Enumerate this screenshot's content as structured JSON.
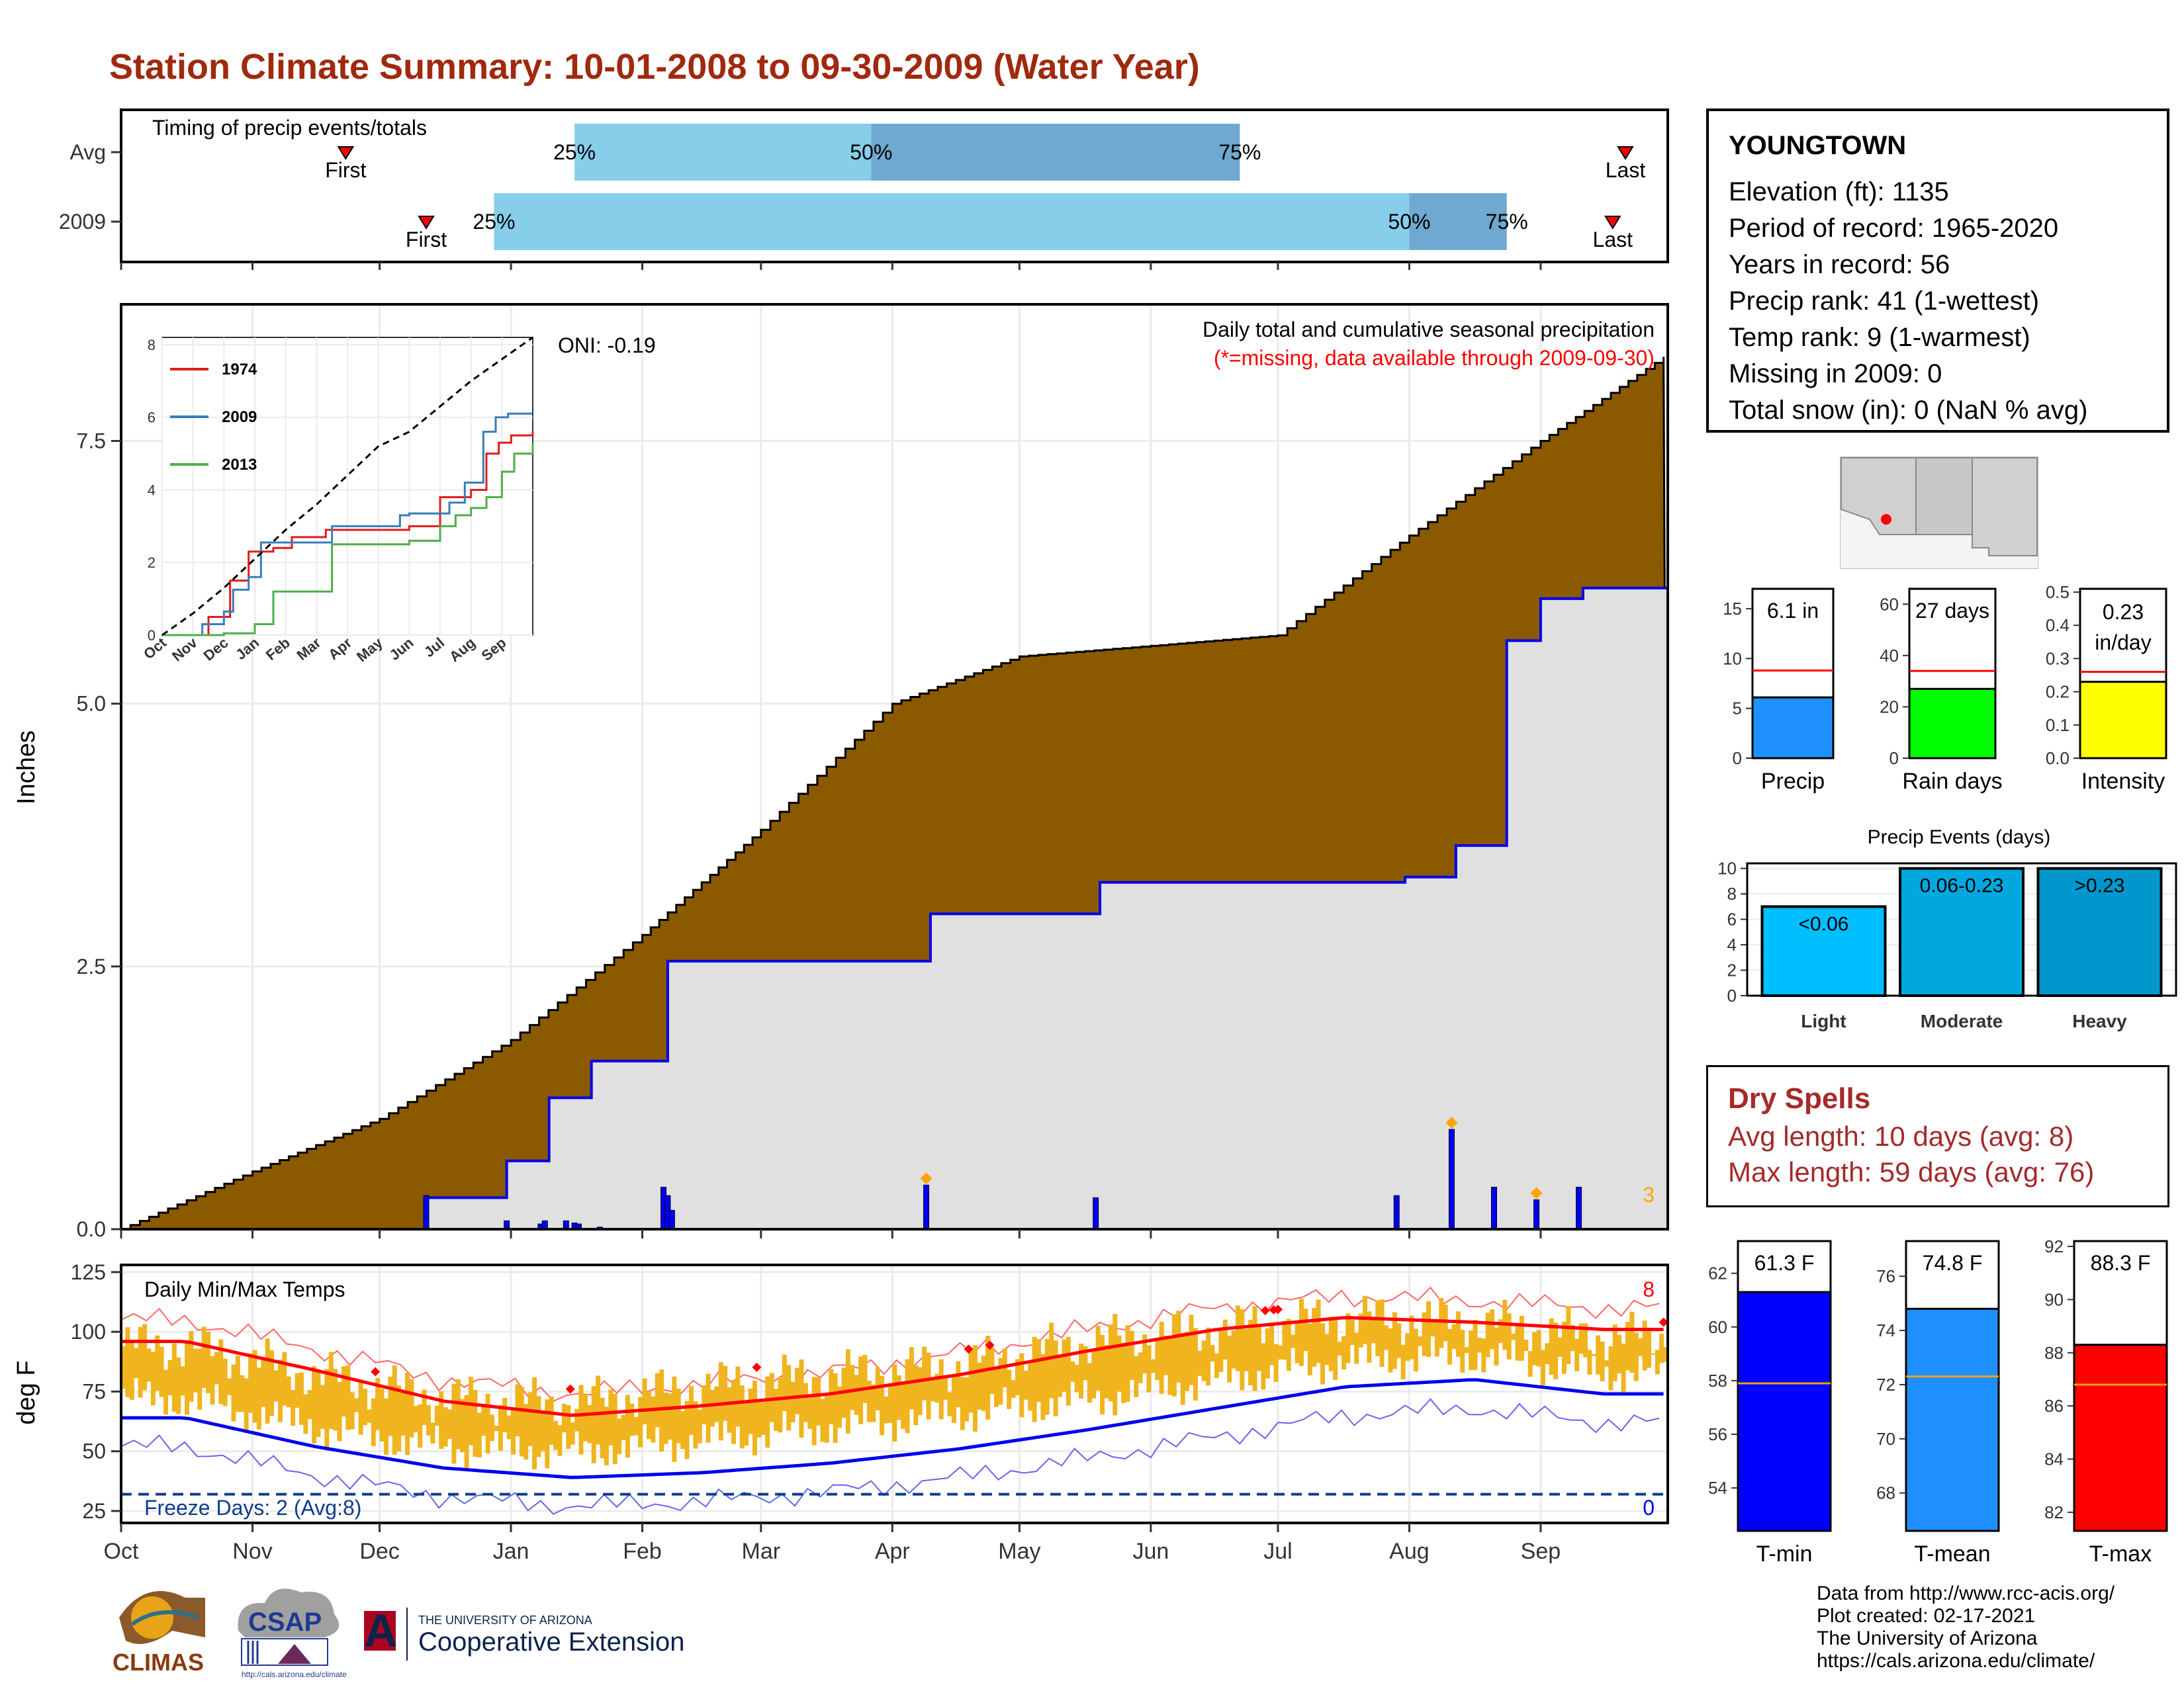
{
  "title": "Station Climate Summary: 10-01-2008 to 09-30-2009 (Water Year)",
  "station": {
    "name": "YOUNGTOWN",
    "lines": [
      "Elevation (ft): 1135",
      "Period of record: 1965-2020",
      "Years in record: 56",
      "Precip rank: 41 (1-wettest)",
      "Temp rank: 9 (1-warmest)",
      "Missing in 2009: 0",
      "Total snow (in): 0 (NaN % avg)"
    ]
  },
  "colors": {
    "title": "#a0290e",
    "cumulative_2009": "#8b5a00",
    "cumulative_avg_fill": "#e0e0e0",
    "daily_bars": "#0000ee",
    "temp_range": "#f0b41e",
    "tmax_line": "#ff0000",
    "tmin_line": "#0000ee",
    "timing_q1": "#87ceeb",
    "timing_q2": "#6fa8d0",
    "precip_bar": "#1e90ff",
    "raindays_bar": "#00ff00",
    "intensity_bar": "#ffff00",
    "events_light": "#00bfff",
    "events_moderate": "#00a8e0",
    "events_heavy": "#0098cc",
    "tmin_bar": "#0000ff",
    "tmean_bar": "#1e90ff",
    "tmax_bar": "#ff0000",
    "dry_spells": "#a52a2a"
  },
  "chart_data": [
    {
      "type": "bar",
      "title": "Timing of precip events/totals",
      "categories": [
        "Avg",
        "2009"
      ],
      "rows": [
        {
          "label": "Avg",
          "first": "Nov 23",
          "q25": "Jan 16",
          "q50": "Mar 27",
          "q75": "Jun 22",
          "last": "Sep 21"
        },
        {
          "label": "2009",
          "first": "Dec 12",
          "q25": "Dec 28",
          "q50": "Aug 1",
          "q75": "Aug 24",
          "last": "Sep 18"
        }
      ],
      "labels": {
        "first": "First",
        "last": "Last",
        "q25": "25%",
        "q50": "50%",
        "q75": "75%"
      }
    },
    {
      "type": "area",
      "title": "Daily total and cumulative seasonal precipitation",
      "subtitle": "(*=missing, data available through 2009-09-30)",
      "ylabel": "Inches",
      "ylim": [
        0,
        8.8
      ],
      "yticks": [
        0.0,
        2.5,
        5.0,
        7.5
      ],
      "xticks": [
        "Oct",
        "Nov",
        "Dec",
        "Jan",
        "Feb",
        "Mar",
        "Apr",
        "May",
        "Jun",
        "Jul",
        "Aug",
        "Sep"
      ],
      "oni": "ONI: -0.19",
      "count_label": "3",
      "series": [
        {
          "name": "Average cumulative",
          "x": [
            "2008-10-01",
            "2008-11-01",
            "2008-12-01",
            "2009-01-01",
            "2009-02-01",
            "2009-03-01",
            "2009-04-01",
            "2009-05-01",
            "2009-06-01",
            "2009-07-01",
            "2009-08-01",
            "2009-09-01",
            "2009-09-30"
          ],
          "values": [
            0.0,
            0.55,
            1.05,
            1.8,
            2.8,
            3.8,
            5.0,
            5.45,
            5.55,
            5.65,
            6.6,
            7.5,
            8.3
          ]
        },
        {
          "name": "2009 cumulative",
          "x": [
            "2008-10-01",
            "2008-12-12",
            "2008-12-31",
            "2009-01-01",
            "2009-01-10",
            "2009-01-20",
            "2009-02-07",
            "2009-02-28",
            "2009-04-10",
            "2009-05-20",
            "2009-07-31",
            "2009-08-12",
            "2009-08-24",
            "2009-09-01",
            "2009-09-11",
            "2009-09-30"
          ],
          "values": [
            0.0,
            0.3,
            0.65,
            0.65,
            1.25,
            1.6,
            2.55,
            2.55,
            3.0,
            3.3,
            3.35,
            3.65,
            5.6,
            6.0,
            6.1,
            6.1
          ]
        },
        {
          "name": "Daily precip",
          "x": [
            "2008-12-12",
            "2008-12-31",
            "2009-01-08",
            "2009-01-09",
            "2009-01-14",
            "2009-01-16",
            "2009-01-17",
            "2009-01-22",
            "2009-02-06",
            "2009-02-07",
            "2009-02-08",
            "2009-04-09",
            "2009-05-19",
            "2009-07-29",
            "2009-08-11",
            "2009-08-21",
            "2009-08-31",
            "2009-09-10"
          ],
          "values": [
            0.32,
            0.08,
            0.05,
            0.08,
            0.08,
            0.06,
            0.05,
            0.02,
            0.4,
            0.32,
            0.18,
            0.42,
            0.3,
            0.32,
            0.95,
            0.4,
            0.28,
            0.4
          ]
        }
      ]
    },
    {
      "type": "line",
      "title": "",
      "xticks": [
        "Oct",
        "Nov",
        "Dec",
        "Jan",
        "Feb",
        "Mar",
        "Apr",
        "May",
        "Jun",
        "Jul",
        "Aug",
        "Sep"
      ],
      "yticks": [
        0,
        2,
        4,
        6,
        8
      ],
      "ylim": [
        0,
        8.2
      ],
      "series": [
        {
          "name": "1974",
          "color": "#e41a1c",
          "x": [
            0,
            1.5,
            2.2,
            2.8,
            3.6,
            4.2,
            5.3,
            8.0,
            9.0,
            10.0,
            10.5,
            10.9,
            11.3,
            12
          ],
          "values": [
            0,
            0.5,
            1.5,
            2.3,
            2.4,
            2.7,
            2.9,
            3.0,
            3.8,
            4.0,
            5.0,
            5.3,
            5.5,
            5.6
          ]
        },
        {
          "name": "2009",
          "color": "#377eb8",
          "x": [
            0,
            1.3,
            2.0,
            2.3,
            2.8,
            3.2,
            4.0,
            5.5,
            7.7,
            8.0,
            9.3,
            9.8,
            10.4,
            10.8,
            11.2,
            11.6,
            12
          ],
          "values": [
            0,
            0.3,
            0.65,
            1.25,
            1.6,
            2.55,
            2.55,
            3.0,
            3.3,
            3.35,
            3.65,
            4.2,
            5.6,
            6.0,
            6.1,
            6.1,
            6.1
          ]
        },
        {
          "name": "2013",
          "color": "#4daf4a",
          "x": [
            0,
            2.0,
            3.0,
            3.6,
            5.5,
            8.0,
            9.0,
            9.5,
            10.0,
            10.5,
            11.0,
            11.4,
            12
          ],
          "values": [
            0,
            0.05,
            0.3,
            1.2,
            2.5,
            2.6,
            3.0,
            3.3,
            3.5,
            3.8,
            4.5,
            5.0,
            5.3
          ]
        },
        {
          "name": "max",
          "color": "#000000",
          "x": [
            0,
            1,
            2,
            3,
            4,
            5,
            6,
            7,
            8,
            9,
            10,
            11,
            12
          ],
          "values": [
            0,
            0.6,
            1.3,
            2.1,
            2.9,
            3.6,
            4.4,
            5.2,
            5.6,
            6.3,
            7.0,
            7.6,
            8.2
          ]
        }
      ]
    },
    {
      "type": "line",
      "title": "Daily Min/Max Temps",
      "ylabel": "deg F",
      "ylim": [
        20,
        128
      ],
      "yticks": [
        25,
        50,
        75,
        100,
        125
      ],
      "xticks": [
        "Oct",
        "Nov",
        "Dec",
        "Jan",
        "Feb",
        "Mar",
        "Apr",
        "May",
        "Jun",
        "Jul",
        "Aug",
        "Sep"
      ],
      "freeze_label": "Freeze Days: 2 (Avg:8)",
      "freeze_line": 32,
      "count_high": "8",
      "count_low": "0",
      "series": [
        {
          "name": "Normal Tmax",
          "x": [
            "Oct",
            "Nov",
            "Dec",
            "Jan",
            "Feb",
            "Mar",
            "Apr",
            "May",
            "Jun",
            "Jul",
            "Aug",
            "Sep"
          ],
          "values": [
            96,
            84,
            71,
            65,
            69,
            74,
            82,
            92,
            101,
            106,
            104,
            101
          ]
        },
        {
          "name": "Normal Tmin",
          "x": [
            "Oct",
            "Nov",
            "Dec",
            "Jan",
            "Feb",
            "Mar",
            "Apr",
            "May",
            "Jun",
            "Jul",
            "Aug",
            "Sep"
          ],
          "values": [
            64,
            52,
            43,
            39,
            41,
            45,
            51,
            59,
            68,
            77,
            80,
            74
          ]
        },
        {
          "name": "Daily Tmax 2009",
          "x": [
            "Oct",
            "Nov",
            "Dec",
            "Jan",
            "Feb",
            "Mar",
            "Apr",
            "May",
            "Jun",
            "Jul",
            "Aug",
            "Sep"
          ],
          "values": [
            94,
            82,
            72,
            70,
            77,
            82,
            86,
            96,
            101,
            106,
            104,
            98
          ]
        },
        {
          "name": "Daily Tmin 2009",
          "x": [
            "Oct",
            "Nov",
            "Dec",
            "Jan",
            "Feb",
            "Mar",
            "Apr",
            "May",
            "Jun",
            "Jul",
            "Aug",
            "Sep"
          ],
          "values": [
            64,
            52,
            44,
            42,
            47,
            52,
            58,
            64,
            72,
            80,
            82,
            75
          ]
        }
      ]
    },
    {
      "type": "bar",
      "title": "Precip",
      "categories": [
        "Precip"
      ],
      "values": [
        6.1
      ],
      "avg": 8.8,
      "label": "6.1 in",
      "ylim": [
        0,
        17
      ],
      "yticks": [
        0,
        5,
        10,
        15
      ]
    },
    {
      "type": "bar",
      "title": "Rain days",
      "categories": [
        "Rain days"
      ],
      "values": [
        27
      ],
      "avg": 34,
      "label": "27 days",
      "ylim": [
        0,
        66
      ],
      "yticks": [
        0,
        20,
        40,
        60
      ]
    },
    {
      "type": "bar",
      "title": "Intensity",
      "categories": [
        "Intensity"
      ],
      "values": [
        0.23
      ],
      "avg": 0.26,
      "label": "0.23",
      "label2": "in/day",
      "ylim": [
        0,
        0.51
      ],
      "yticks": [
        0.0,
        0.1,
        0.2,
        0.3,
        0.4,
        0.5
      ]
    },
    {
      "type": "bar",
      "title": "Precip Events (days)",
      "categories": [
        "Light",
        "Moderate",
        "Heavy"
      ],
      "values": [
        7,
        10,
        10
      ],
      "bar_labels": [
        "<0.06",
        "0.06-0.23",
        ">0.23"
      ],
      "ylim": [
        0,
        10.4
      ],
      "yticks": [
        0,
        2,
        4,
        6,
        8,
        10
      ]
    },
    {
      "type": "bar",
      "title": "T-min",
      "categories": [
        "T-min"
      ],
      "values": [
        61.3
      ],
      "avg": 57.9,
      "label": "61.3 F",
      "ylim": [
        52.4,
        63.2
      ],
      "yticks": [
        54,
        56,
        58,
        60,
        62
      ]
    },
    {
      "type": "bar",
      "title": "T-mean",
      "categories": [
        "T-mean"
      ],
      "values": [
        74.8
      ],
      "avg": 72.3,
      "label": "74.8 F",
      "ylim": [
        66.6,
        77.3
      ],
      "yticks": [
        68,
        70,
        72,
        74,
        76
      ]
    },
    {
      "type": "bar",
      "title": "T-max",
      "categories": [
        "T-max"
      ],
      "values": [
        88.3
      ],
      "avg": 86.8,
      "label": "88.3 F",
      "ylim": [
        81.3,
        92.2
      ],
      "yticks": [
        82,
        84,
        86,
        88,
        90,
        92
      ]
    }
  ],
  "dry_spells": {
    "title": "Dry Spells",
    "avg_line": "Avg length: 10 days (avg: 8)",
    "max_line": "Max length: 59 days (avg: 76)"
  },
  "credits": [
    "Data from http://www.rcc-acis.org/",
    "Plot created: 02-17-2021",
    "The University of Arizona",
    "https://cals.arizona.edu/climate/"
  ],
  "logos": {
    "climas": "CLIMAS",
    "csap": "CSAP",
    "csap_url": "http://cals.arizona.edu/climate",
    "ua_small": "THE UNIVERSITY OF ARIZONA",
    "ua_big": "Cooperative Extension",
    "ua_letter": "A"
  }
}
